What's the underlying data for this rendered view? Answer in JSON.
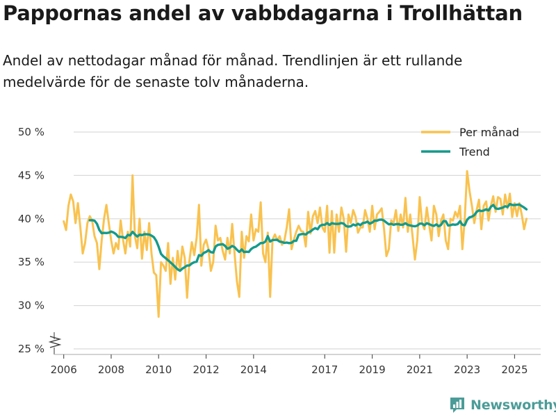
{
  "page": {
    "title": "Pappornas andel av vabbdagarna i Trollhättan",
    "subtitle": "Andel av nettodagar månad för månad. Trendlinjen är ett rullande medelvärde för de senaste tolv månaderna.",
    "brand": "Newsworthy"
  },
  "colors": {
    "monthly": "#f9c24f",
    "trend": "#139a8c",
    "grid": "#d9d9d9",
    "axis": "#bbbbbb",
    "brand": "#4b9c98"
  },
  "chart_data": {
    "type": "line",
    "title": "Pappornas andel av vabbdagarna i Trollhättan",
    "xlabel": "",
    "ylabel": "",
    "y_unit": "%",
    "ylim": [
      25,
      50
    ],
    "xlim": [
      2005.6,
      2026.1
    ],
    "y_ticks": [
      25,
      30,
      35,
      40,
      45,
      50
    ],
    "y_tick_labels": [
      "25 %",
      "30 %",
      "35 %",
      "40 %",
      "45 %",
      "50 %"
    ],
    "x_ticks": [
      2006,
      2008,
      2010,
      2012,
      2014,
      2017,
      2019,
      2021,
      2023,
      2025
    ],
    "x_tick_labels": [
      "2006",
      "2008",
      "2010",
      "2012",
      "2014",
      "2017",
      "2019",
      "2021",
      "2023",
      "2025"
    ],
    "axis_break": true,
    "grid": true,
    "legend_position": "top-right",
    "series": [
      {
        "name": "Per månad",
        "color": "#f9c24f",
        "points": [
          [
            2006.0,
            39.7
          ],
          [
            2006.1,
            38.7
          ],
          [
            2006.2,
            41.5
          ],
          [
            2006.3,
            42.8
          ],
          [
            2006.4,
            42.0
          ],
          [
            2006.5,
            39.5
          ],
          [
            2006.6,
            41.8
          ],
          [
            2006.7,
            39.0
          ],
          [
            2006.8,
            36.0
          ],
          [
            2006.9,
            37.2
          ],
          [
            2007.0,
            39.5
          ],
          [
            2007.1,
            40.3
          ],
          [
            2007.2,
            39.8
          ],
          [
            2007.3,
            38.0
          ],
          [
            2007.4,
            37.2
          ],
          [
            2007.5,
            34.2
          ],
          [
            2007.6,
            37.5
          ],
          [
            2007.7,
            40.0
          ],
          [
            2007.8,
            41.6
          ],
          [
            2007.9,
            39.5
          ],
          [
            2008.0,
            37.5
          ],
          [
            2008.1,
            36.0
          ],
          [
            2008.2,
            37.2
          ],
          [
            2008.3,
            36.5
          ],
          [
            2008.4,
            39.8
          ],
          [
            2008.5,
            37.6
          ],
          [
            2008.6,
            36.0
          ],
          [
            2008.7,
            38.5
          ],
          [
            2008.8,
            36.8
          ],
          [
            2008.9,
            45.0
          ],
          [
            2009.0,
            38.0
          ],
          [
            2009.1,
            36.6
          ],
          [
            2009.2,
            40.0
          ],
          [
            2009.3,
            35.4
          ],
          [
            2009.4,
            38.5
          ],
          [
            2009.5,
            36.4
          ],
          [
            2009.6,
            39.5
          ],
          [
            2009.7,
            36.0
          ],
          [
            2009.8,
            33.8
          ],
          [
            2009.9,
            33.5
          ],
          [
            2010.0,
            28.7
          ],
          [
            2010.1,
            35.0
          ],
          [
            2010.2,
            34.6
          ],
          [
            2010.3,
            34.0
          ],
          [
            2010.4,
            37.2
          ],
          [
            2010.5,
            32.5
          ],
          [
            2010.6,
            35.5
          ],
          [
            2010.7,
            33.0
          ],
          [
            2010.8,
            36.3
          ],
          [
            2010.9,
            34.0
          ],
          [
            2011.0,
            36.8
          ],
          [
            2011.1,
            35.5
          ],
          [
            2011.2,
            30.9
          ],
          [
            2011.3,
            35.2
          ],
          [
            2011.4,
            37.3
          ],
          [
            2011.5,
            35.8
          ],
          [
            2011.6,
            37.8
          ],
          [
            2011.7,
            41.6
          ],
          [
            2011.8,
            34.6
          ],
          [
            2011.9,
            37.0
          ],
          [
            2012.0,
            37.6
          ],
          [
            2012.1,
            36.5
          ],
          [
            2012.2,
            34.0
          ],
          [
            2012.3,
            35.0
          ],
          [
            2012.4,
            39.2
          ],
          [
            2012.5,
            37.5
          ],
          [
            2012.6,
            37.8
          ],
          [
            2012.7,
            36.3
          ],
          [
            2012.8,
            35.3
          ],
          [
            2012.9,
            37.8
          ],
          [
            2013.0,
            36.0
          ],
          [
            2013.1,
            39.4
          ],
          [
            2013.2,
            36.0
          ],
          [
            2013.3,
            32.8
          ],
          [
            2013.4,
            31.0
          ],
          [
            2013.5,
            38.5
          ],
          [
            2013.6,
            35.5
          ],
          [
            2013.7,
            38.0
          ],
          [
            2013.8,
            37.4
          ],
          [
            2013.9,
            40.5
          ],
          [
            2014.0,
            37.5
          ],
          [
            2014.1,
            38.8
          ],
          [
            2014.2,
            38.5
          ],
          [
            2014.3,
            41.9
          ],
          [
            2014.4,
            36.0
          ],
          [
            2014.5,
            35.0
          ],
          [
            2014.6,
            38.4
          ],
          [
            2014.7,
            31.0
          ],
          [
            2014.8,
            37.6
          ],
          [
            2014.9,
            38.2
          ],
          [
            2015.0,
            37.5
          ],
          [
            2015.1,
            38.0
          ],
          [
            2015.2,
            37.0
          ],
          [
            2015.3,
            37.5
          ],
          [
            2015.4,
            39.0
          ],
          [
            2015.5,
            41.1
          ],
          [
            2015.6,
            36.5
          ],
          [
            2015.7,
            37.6
          ],
          [
            2015.8,
            38.5
          ],
          [
            2015.9,
            39.2
          ],
          [
            2016.0,
            38.6
          ],
          [
            2016.1,
            38.5
          ],
          [
            2016.2,
            36.8
          ],
          [
            2016.3,
            40.8
          ],
          [
            2016.4,
            38.3
          ],
          [
            2016.5,
            40.3
          ],
          [
            2016.6,
            40.9
          ],
          [
            2016.7,
            39.5
          ],
          [
            2016.8,
            41.3
          ],
          [
            2016.9,
            39.0
          ],
          [
            2017.0,
            38.5
          ],
          [
            2017.1,
            41.5
          ],
          [
            2017.2,
            36.1
          ],
          [
            2017.3,
            40.9
          ],
          [
            2017.4,
            36.1
          ],
          [
            2017.5,
            40.5
          ],
          [
            2017.6,
            38.5
          ],
          [
            2017.7,
            41.3
          ],
          [
            2017.8,
            40.0
          ],
          [
            2017.9,
            36.2
          ],
          [
            2018.0,
            40.5
          ],
          [
            2018.1,
            39.5
          ],
          [
            2018.2,
            41.0
          ],
          [
            2018.3,
            40.2
          ],
          [
            2018.4,
            38.4
          ],
          [
            2018.5,
            39.0
          ],
          [
            2018.6,
            39.0
          ],
          [
            2018.7,
            41.0
          ],
          [
            2018.8,
            40.0
          ],
          [
            2018.9,
            38.5
          ],
          [
            2019.0,
            41.5
          ],
          [
            2019.1,
            38.8
          ],
          [
            2019.2,
            40.5
          ],
          [
            2019.3,
            40.8
          ],
          [
            2019.4,
            41.2
          ],
          [
            2019.5,
            38.8
          ],
          [
            2019.6,
            35.7
          ],
          [
            2019.7,
            36.5
          ],
          [
            2019.8,
            39.8
          ],
          [
            2019.9,
            39.5
          ],
          [
            2020.0,
            41.0
          ],
          [
            2020.1,
            38.6
          ],
          [
            2020.2,
            40.5
          ],
          [
            2020.3,
            39.0
          ],
          [
            2020.4,
            42.4
          ],
          [
            2020.5,
            38.5
          ],
          [
            2020.6,
            40.5
          ],
          [
            2020.7,
            38.0
          ],
          [
            2020.8,
            35.3
          ],
          [
            2020.9,
            37.5
          ],
          [
            2021.0,
            42.5
          ],
          [
            2021.1,
            39.5
          ],
          [
            2021.2,
            38.8
          ],
          [
            2021.3,
            41.3
          ],
          [
            2021.4,
            39.3
          ],
          [
            2021.5,
            37.5
          ],
          [
            2021.6,
            41.5
          ],
          [
            2021.7,
            40.5
          ],
          [
            2021.8,
            38.0
          ],
          [
            2021.9,
            39.8
          ],
          [
            2022.0,
            40.5
          ],
          [
            2022.1,
            37.5
          ],
          [
            2022.2,
            36.5
          ],
          [
            2022.3,
            40.0
          ],
          [
            2022.4,
            39.8
          ],
          [
            2022.5,
            40.8
          ],
          [
            2022.6,
            40.2
          ],
          [
            2022.7,
            41.5
          ],
          [
            2022.8,
            36.5
          ],
          [
            2022.9,
            40.0
          ],
          [
            2023.0,
            45.5
          ],
          [
            2023.1,
            43.2
          ],
          [
            2023.2,
            41.5
          ],
          [
            2023.3,
            39.5
          ],
          [
            2023.4,
            41.0
          ],
          [
            2023.5,
            42.2
          ],
          [
            2023.6,
            38.8
          ],
          [
            2023.7,
            41.5
          ],
          [
            2023.8,
            42.0
          ],
          [
            2023.9,
            39.8
          ],
          [
            2024.0,
            41.5
          ],
          [
            2024.1,
            42.6
          ],
          [
            2024.2,
            40.8
          ],
          [
            2024.3,
            42.5
          ],
          [
            2024.4,
            42.3
          ],
          [
            2024.5,
            40.5
          ],
          [
            2024.6,
            42.8
          ],
          [
            2024.7,
            41.2
          ],
          [
            2024.8,
            42.9
          ],
          [
            2024.9,
            40.2
          ],
          [
            2025.0,
            41.8
          ],
          [
            2025.1,
            40.3
          ],
          [
            2025.2,
            41.8
          ],
          [
            2025.3,
            40.5
          ],
          [
            2025.4,
            38.8
          ],
          [
            2025.5,
            40.0
          ]
        ]
      },
      {
        "name": "Trend",
        "color": "#139a8c",
        "points": []
      }
    ]
  }
}
